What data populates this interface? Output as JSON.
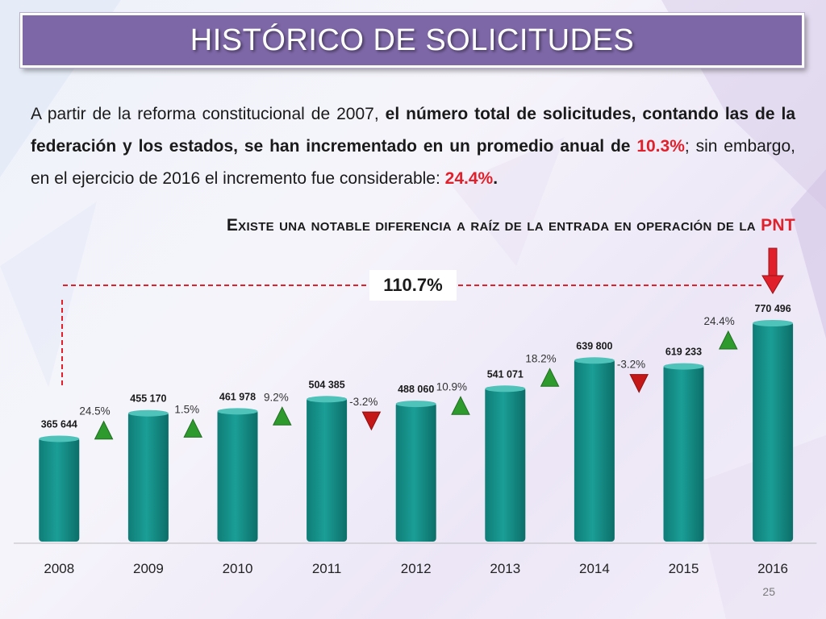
{
  "slide": {
    "title": "HISTÓRICO DE SOLICITUDES",
    "intro_part1": "A partir de la reforma constitucional de 2007, ",
    "intro_bold1": "el número total de solicitudes, contando las de la federación y los estados, se han incrementado en un promedio anual de ",
    "intro_red1": "10.3%",
    "intro_part2": "; sin embargo, en el ejercicio de 2016 el incremento fue considerable: ",
    "intro_red2": "24.4%",
    "intro_end": ".",
    "subtitle": "Existe una notable diferencia a raíz de la entrada en operación de la ",
    "subtitle_highlight": "PNT",
    "total_change": "110.7%",
    "page_number": "25"
  },
  "colors": {
    "bar": "#1a9e96",
    "up_arrow": "#2e9a2e",
    "down_arrow": "#c41818",
    "dashed_line": "#e0202a",
    "title_bg": "#7d67a6"
  },
  "chart_data": {
    "type": "bar",
    "categories": [
      "2008",
      "2009",
      "2010",
      "2011",
      "2012",
      "2013",
      "2014",
      "2015",
      "2016"
    ],
    "values": [
      365644,
      455170,
      461978,
      504385,
      488060,
      541071,
      639800,
      619233,
      770496
    ],
    "value_labels": [
      "365 644",
      "455 170",
      "461 978",
      "504 385",
      "488 060",
      "541 071",
      "639 800",
      "619 233",
      "770 496"
    ],
    "changes": [
      "24.5%",
      "1.5%",
      "9.2%",
      "-3.2%",
      "10.9%",
      "18.2%",
      "-3.2%",
      "24.4%"
    ],
    "change_directions": [
      "up",
      "up",
      "up",
      "down",
      "up",
      "up",
      "down",
      "up"
    ],
    "ylim": [
      0,
      800000
    ]
  }
}
